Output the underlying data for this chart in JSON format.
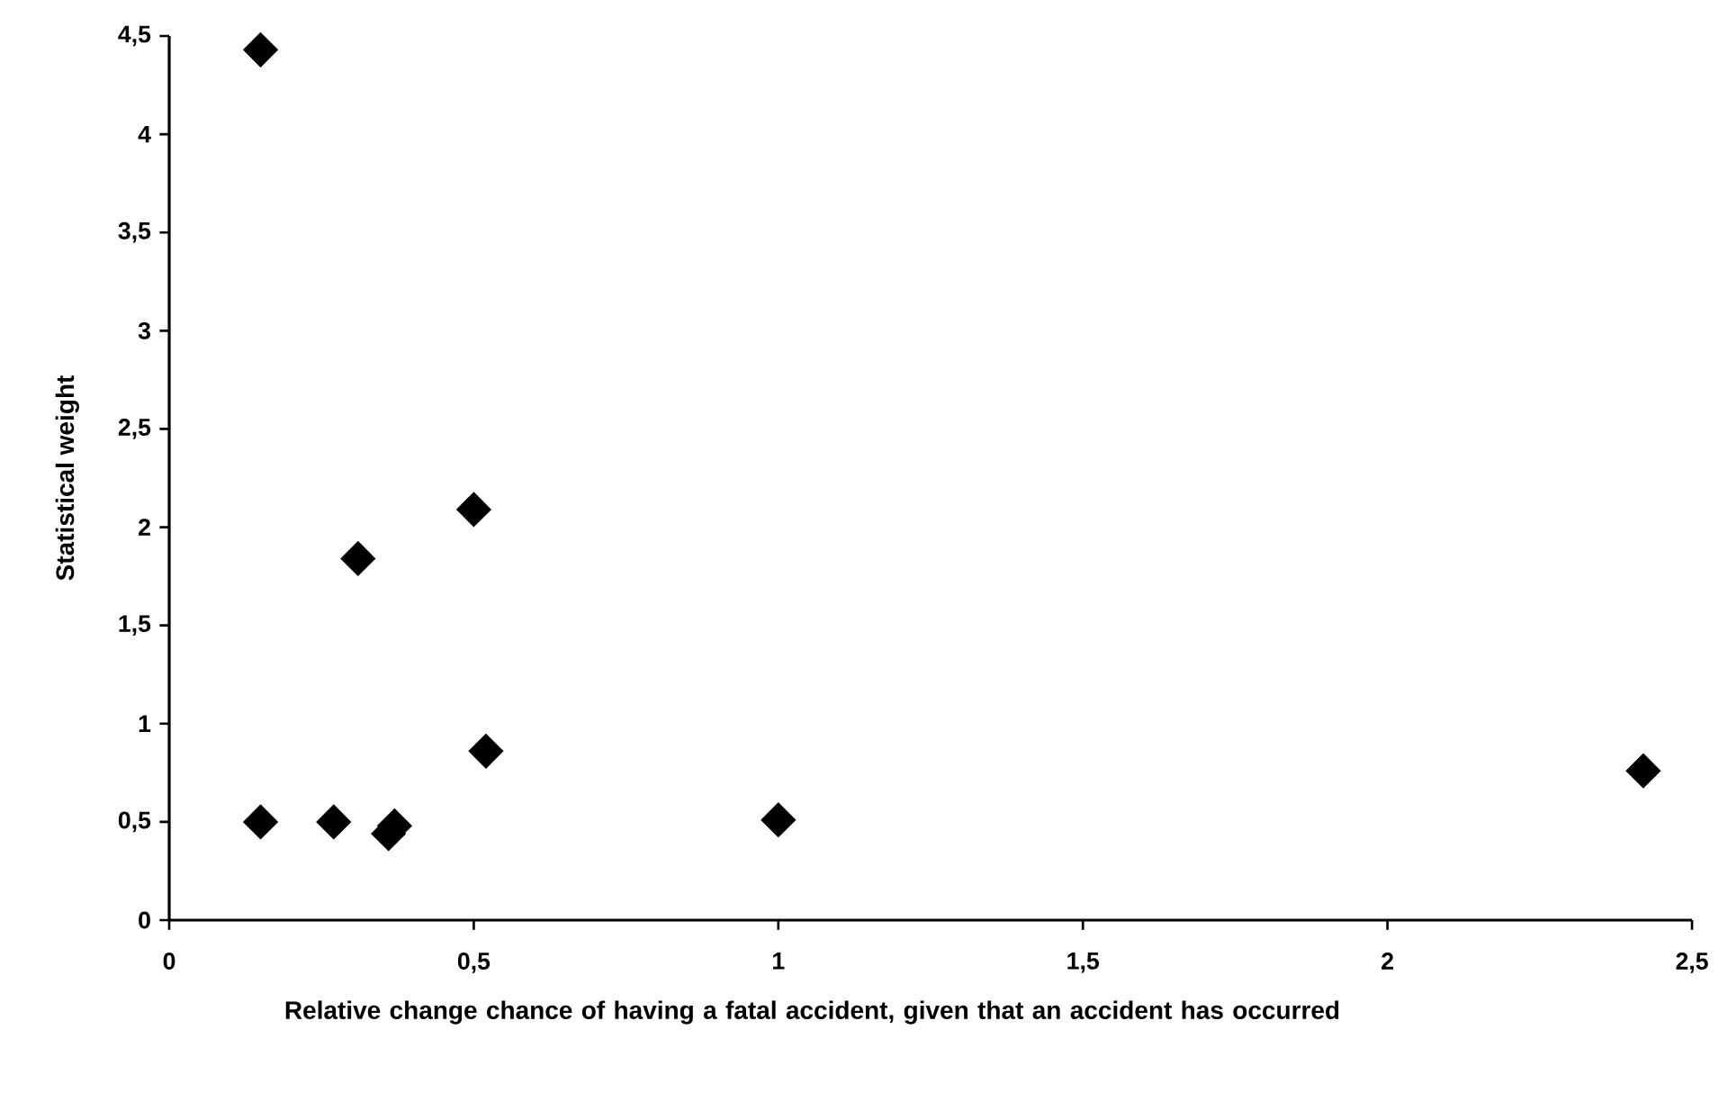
{
  "chart_data": {
    "type": "scatter",
    "xlabel": "Relative change chance of having a fatal accident, given that an accident has occurred",
    "ylabel": "Statistical weight",
    "x": [
      0.15,
      0.15,
      0.27,
      0.31,
      0.36,
      0.37,
      0.5,
      0.52,
      1.0,
      2.42
    ],
    "values": [
      4.43,
      0.5,
      0.5,
      1.84,
      0.44,
      0.48,
      2.09,
      0.86,
      0.51,
      0.76
    ],
    "color": "#000000",
    "marker": "diamond",
    "grid": false,
    "xlim": [
      0,
      2.5
    ],
    "ylim": [
      0,
      4.5
    ],
    "xticks": [
      0,
      {
        "value": 0.5,
        "label": "0,5"
      },
      1,
      {
        "value": 1.5,
        "label": "1,5"
      },
      2,
      {
        "value": 2.5,
        "label": "2,5"
      }
    ],
    "yticks": [
      0,
      {
        "value": 0.5,
        "label": "0,5"
      },
      1,
      {
        "value": 1.5,
        "label": "1,5"
      },
      2,
      {
        "value": 2.5,
        "label": "2,5"
      },
      3,
      {
        "value": 3.5,
        "label": "3,5"
      },
      4,
      {
        "value": 4.5,
        "label": "4,5"
      }
    ]
  }
}
